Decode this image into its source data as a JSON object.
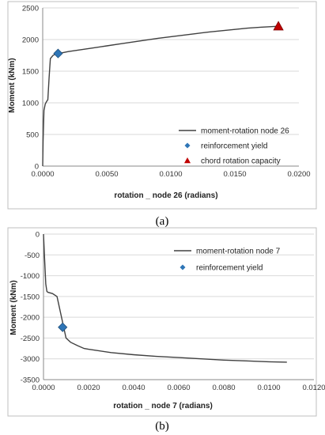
{
  "chart_data": [
    {
      "type": "line",
      "panel_label": "(a)",
      "xlabel": "rotation _ node 26 (radians)",
      "ylabel": "Moment (kNm)",
      "xlim": [
        0,
        0.02
      ],
      "ylim": [
        0,
        2500
      ],
      "xticks": [
        "0.0000",
        "0.0050",
        "0.0100",
        "0.0150",
        "0.0200"
      ],
      "yticks": [
        "0",
        "500",
        "1000",
        "1500",
        "2000",
        "2500"
      ],
      "grid": "horizontal",
      "legend_position": "bottom-right",
      "colors": {
        "line": "#404040",
        "yield": "#2e75b6",
        "capacity": "#c00000"
      },
      "series": [
        {
          "name": "moment-rotation node 26",
          "kind": "line",
          "x": [
            0,
            3e-05,
            0.0001,
            0.0002,
            0.0003,
            0.0004,
            0.0005,
            0.0006,
            0.0008,
            0.001,
            0.0012,
            0.0015,
            0.002,
            0.003,
            0.004,
            0.005,
            0.006,
            0.007,
            0.008,
            0.009,
            0.01,
            0.011,
            0.012,
            0.013,
            0.014,
            0.015,
            0.016,
            0.017,
            0.0184
          ],
          "y": [
            0,
            400,
            880,
            980,
            1020,
            1050,
            1400,
            1700,
            1750,
            1770,
            1780,
            1790,
            1810,
            1840,
            1870,
            1900,
            1930,
            1960,
            1990,
            2020,
            2045,
            2070,
            2095,
            2120,
            2140,
            2160,
            2180,
            2195,
            2210
          ]
        },
        {
          "name": "reinforcement yield",
          "kind": "diamond",
          "x": [
            0.0012
          ],
          "y": [
            1780
          ]
        },
        {
          "name": "chord rotation capacity",
          "kind": "triangle",
          "x": [
            0.0184
          ],
          "y": [
            2210
          ]
        }
      ]
    },
    {
      "type": "line",
      "panel_label": "(b)",
      "xlabel": "rotation _ node 7 (radians)",
      "ylabel": "Moment (kNm)",
      "xlim": [
        0,
        0.012
      ],
      "ylim": [
        -3500,
        0
      ],
      "xticks": [
        "0.0000",
        "0.0020",
        "0.0040",
        "0.0060",
        "0.0080",
        "0.0100",
        "0.0120"
      ],
      "yticks": [
        "0",
        "-500",
        "-1000",
        "-1500",
        "-2000",
        "-2500",
        "-3000",
        "-3500"
      ],
      "grid": "horizontal",
      "legend_position": "top-right",
      "colors": {
        "line": "#404040",
        "yield": "#2e75b6"
      },
      "series": [
        {
          "name": "moment-rotation node 7",
          "kind": "line",
          "x": [
            0,
            5e-05,
            0.0001,
            0.00015,
            0.0002,
            0.0004,
            0.0006,
            0.0008,
            0.001,
            0.0012,
            0.0015,
            0.0018,
            0.002,
            0.003,
            0.004,
            0.005,
            0.006,
            0.007,
            0.008,
            0.009,
            0.01,
            0.0108
          ],
          "y": [
            0,
            -600,
            -1200,
            -1380,
            -1400,
            -1430,
            -1500,
            -2000,
            -2500,
            -2600,
            -2680,
            -2750,
            -2770,
            -2850,
            -2900,
            -2940,
            -2970,
            -3000,
            -3030,
            -3050,
            -3070,
            -3080
          ]
        },
        {
          "name": "reinforcement yield",
          "kind": "diamond",
          "x": [
            0.00085
          ],
          "y": [
            -2240
          ]
        }
      ]
    }
  ]
}
